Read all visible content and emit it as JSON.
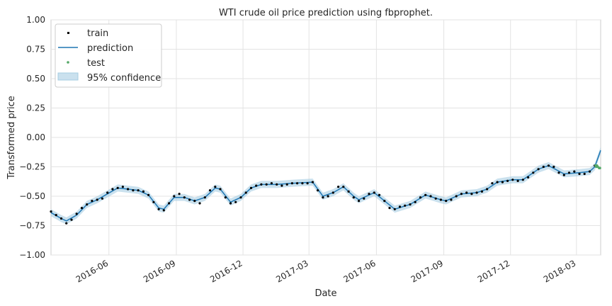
{
  "chart_data": {
    "type": "line",
    "title": "WTI crude oil price prediction using fbprophet.",
    "xlabel": "Date",
    "ylabel": "Transformed price",
    "ylim": [
      -1.0,
      1.0
    ],
    "xlim": [
      "2016-03-14",
      "2018-04-03"
    ],
    "yticks": [
      -1.0,
      -0.75,
      -0.5,
      -0.25,
      0.0,
      0.25,
      0.5,
      0.75,
      1.0
    ],
    "ytick_labels": [
      "−1.00",
      "−0.75",
      "−0.50",
      "−0.25",
      "0.00",
      "0.25",
      "0.50",
      "0.75",
      "1.00"
    ],
    "xticks": [
      "2016-06-01",
      "2016-09-01",
      "2016-12-01",
      "2017-03-01",
      "2017-06-01",
      "2017-09-01",
      "2017-12-01",
      "2018-03-01"
    ],
    "xtick_labels": [
      "2016-06",
      "2016-09",
      "2016-12",
      "2017-03",
      "2017-06",
      "2017-09",
      "2017-12",
      "2018-03"
    ],
    "grid": true,
    "legend_position": "top-left",
    "legend": [
      "train",
      "prediction",
      "test",
      "95% confidence"
    ],
    "colors": {
      "train": "#000000",
      "prediction": "#1f77b4",
      "test": "#55a868",
      "confidence": "#a6cde2"
    },
    "confidence_halfwidth": 0.03,
    "series": [
      {
        "name": "train",
        "points": [
          [
            "2016-03-14",
            -0.63
          ],
          [
            "2016-03-21",
            -0.66
          ],
          [
            "2016-03-28",
            -0.69
          ],
          [
            "2016-04-04",
            -0.73
          ],
          [
            "2016-04-11",
            -0.7
          ],
          [
            "2016-04-18",
            -0.65
          ],
          [
            "2016-04-25",
            -0.6
          ],
          [
            "2016-05-02",
            -0.57
          ],
          [
            "2016-05-09",
            -0.54
          ],
          [
            "2016-05-16",
            -0.53
          ],
          [
            "2016-05-23",
            -0.52
          ],
          [
            "2016-05-30",
            -0.47
          ],
          [
            "2016-06-06",
            -0.44
          ],
          [
            "2016-06-13",
            -0.43
          ],
          [
            "2016-06-20",
            -0.42
          ],
          [
            "2016-06-27",
            -0.44
          ],
          [
            "2016-07-04",
            -0.45
          ],
          [
            "2016-07-11",
            -0.45
          ],
          [
            "2016-07-18",
            -0.46
          ],
          [
            "2016-07-25",
            -0.49
          ],
          [
            "2016-08-01",
            -0.55
          ],
          [
            "2016-08-08",
            -0.61
          ],
          [
            "2016-08-15",
            -0.62
          ],
          [
            "2016-08-22",
            -0.56
          ],
          [
            "2016-08-29",
            -0.5
          ],
          [
            "2016-09-05",
            -0.48
          ],
          [
            "2016-09-12",
            -0.51
          ],
          [
            "2016-09-19",
            -0.53
          ],
          [
            "2016-09-26",
            -0.54
          ],
          [
            "2016-10-03",
            -0.56
          ],
          [
            "2016-10-10",
            -0.51
          ],
          [
            "2016-10-17",
            -0.45
          ],
          [
            "2016-10-24",
            -0.42
          ],
          [
            "2016-10-31",
            -0.44
          ],
          [
            "2016-11-07",
            -0.51
          ],
          [
            "2016-11-14",
            -0.56
          ],
          [
            "2016-11-21",
            -0.55
          ],
          [
            "2016-11-28",
            -0.51
          ],
          [
            "2016-12-05",
            -0.47
          ],
          [
            "2016-12-12",
            -0.43
          ],
          [
            "2016-12-19",
            -0.41
          ],
          [
            "2016-12-26",
            -0.4
          ],
          [
            "2017-01-02",
            -0.4
          ],
          [
            "2017-01-09",
            -0.39
          ],
          [
            "2017-01-16",
            -0.4
          ],
          [
            "2017-01-23",
            -0.41
          ],
          [
            "2017-01-30",
            -0.4
          ],
          [
            "2017-02-06",
            -0.39
          ],
          [
            "2017-02-13",
            -0.39
          ],
          [
            "2017-02-20",
            -0.39
          ],
          [
            "2017-02-27",
            -0.39
          ],
          [
            "2017-03-06",
            -0.38
          ],
          [
            "2017-03-13",
            -0.45
          ],
          [
            "2017-03-20",
            -0.51
          ],
          [
            "2017-03-27",
            -0.5
          ],
          [
            "2017-04-03",
            -0.47
          ],
          [
            "2017-04-10",
            -0.42
          ],
          [
            "2017-04-17",
            -0.42
          ],
          [
            "2017-04-24",
            -0.46
          ],
          [
            "2017-05-01",
            -0.51
          ],
          [
            "2017-05-08",
            -0.54
          ],
          [
            "2017-05-15",
            -0.52
          ],
          [
            "2017-05-22",
            -0.48
          ],
          [
            "2017-05-29",
            -0.47
          ],
          [
            "2017-06-05",
            -0.49
          ],
          [
            "2017-06-12",
            -0.54
          ],
          [
            "2017-06-19",
            -0.6
          ],
          [
            "2017-06-26",
            -0.61
          ],
          [
            "2017-07-03",
            -0.59
          ],
          [
            "2017-07-10",
            -0.58
          ],
          [
            "2017-07-17",
            -0.57
          ],
          [
            "2017-07-24",
            -0.55
          ],
          [
            "2017-07-31",
            -0.51
          ],
          [
            "2017-08-07",
            -0.49
          ],
          [
            "2017-08-14",
            -0.5
          ],
          [
            "2017-08-21",
            -0.52
          ],
          [
            "2017-08-28",
            -0.53
          ],
          [
            "2017-09-04",
            -0.54
          ],
          [
            "2017-09-11",
            -0.53
          ],
          [
            "2017-09-18",
            -0.5
          ],
          [
            "2017-09-25",
            -0.48
          ],
          [
            "2017-10-02",
            -0.47
          ],
          [
            "2017-10-09",
            -0.48
          ],
          [
            "2017-10-16",
            -0.47
          ],
          [
            "2017-10-23",
            -0.46
          ],
          [
            "2017-10-30",
            -0.44
          ],
          [
            "2017-11-06",
            -0.39
          ],
          [
            "2017-11-13",
            -0.38
          ],
          [
            "2017-11-20",
            -0.38
          ],
          [
            "2017-11-27",
            -0.37
          ],
          [
            "2017-12-04",
            -0.36
          ],
          [
            "2017-12-11",
            -0.37
          ],
          [
            "2017-12-18",
            -0.36
          ],
          [
            "2017-12-25",
            -0.34
          ],
          [
            "2018-01-01",
            -0.3
          ],
          [
            "2018-01-08",
            -0.27
          ],
          [
            "2018-01-15",
            -0.25
          ],
          [
            "2018-01-22",
            -0.24
          ],
          [
            "2018-01-29",
            -0.25
          ],
          [
            "2018-02-05",
            -0.3
          ],
          [
            "2018-02-12",
            -0.32
          ],
          [
            "2018-02-19",
            -0.3
          ],
          [
            "2018-02-26",
            -0.29
          ],
          [
            "2018-03-05",
            -0.31
          ],
          [
            "2018-03-12",
            -0.31
          ],
          [
            "2018-03-19",
            -0.29
          ],
          [
            "2018-03-26",
            -0.24
          ]
        ]
      },
      {
        "name": "prediction",
        "points": [
          [
            "2016-03-14",
            -0.64
          ],
          [
            "2016-03-28",
            -0.69
          ],
          [
            "2016-04-04",
            -0.71
          ],
          [
            "2016-04-18",
            -0.66
          ],
          [
            "2016-05-02",
            -0.57
          ],
          [
            "2016-05-16",
            -0.53
          ],
          [
            "2016-05-30",
            -0.48
          ],
          [
            "2016-06-13",
            -0.43
          ],
          [
            "2016-06-27",
            -0.44
          ],
          [
            "2016-07-11",
            -0.45
          ],
          [
            "2016-07-25",
            -0.49
          ],
          [
            "2016-08-08",
            -0.6
          ],
          [
            "2016-08-15",
            -0.61
          ],
          [
            "2016-08-29",
            -0.51
          ],
          [
            "2016-09-12",
            -0.51
          ],
          [
            "2016-09-26",
            -0.54
          ],
          [
            "2016-10-10",
            -0.51
          ],
          [
            "2016-10-24",
            -0.43
          ],
          [
            "2016-10-31",
            -0.44
          ],
          [
            "2016-11-14",
            -0.55
          ],
          [
            "2016-11-28",
            -0.51
          ],
          [
            "2016-12-12",
            -0.43
          ],
          [
            "2016-12-26",
            -0.4
          ],
          [
            "2017-01-16",
            -0.4
          ],
          [
            "2017-02-06",
            -0.39
          ],
          [
            "2017-03-06",
            -0.38
          ],
          [
            "2017-03-20",
            -0.5
          ],
          [
            "2017-04-03",
            -0.47
          ],
          [
            "2017-04-17",
            -0.42
          ],
          [
            "2017-05-01",
            -0.5
          ],
          [
            "2017-05-08",
            -0.53
          ],
          [
            "2017-05-29",
            -0.47
          ],
          [
            "2017-06-12",
            -0.54
          ],
          [
            "2017-06-26",
            -0.61
          ],
          [
            "2017-07-17",
            -0.57
          ],
          [
            "2017-08-07",
            -0.49
          ],
          [
            "2017-08-28",
            -0.53
          ],
          [
            "2017-09-04",
            -0.54
          ],
          [
            "2017-09-25",
            -0.48
          ],
          [
            "2017-10-16",
            -0.47
          ],
          [
            "2017-10-30",
            -0.44
          ],
          [
            "2017-11-13",
            -0.38
          ],
          [
            "2017-12-04",
            -0.36
          ],
          [
            "2017-12-18",
            -0.36
          ],
          [
            "2018-01-08",
            -0.27
          ],
          [
            "2018-01-22",
            -0.24
          ],
          [
            "2018-02-12",
            -0.31
          ],
          [
            "2018-03-05",
            -0.3
          ],
          [
            "2018-03-19",
            -0.29
          ],
          [
            "2018-03-26",
            -0.25
          ],
          [
            "2018-04-03",
            -0.11
          ]
        ]
      },
      {
        "name": "test",
        "points": [
          [
            "2018-03-27",
            -0.24
          ],
          [
            "2018-03-28",
            -0.25
          ],
          [
            "2018-03-29",
            -0.24
          ],
          [
            "2018-03-30",
            -0.25
          ],
          [
            "2018-04-01",
            -0.26
          ],
          [
            "2018-04-02",
            -0.26
          ]
        ]
      }
    ]
  }
}
